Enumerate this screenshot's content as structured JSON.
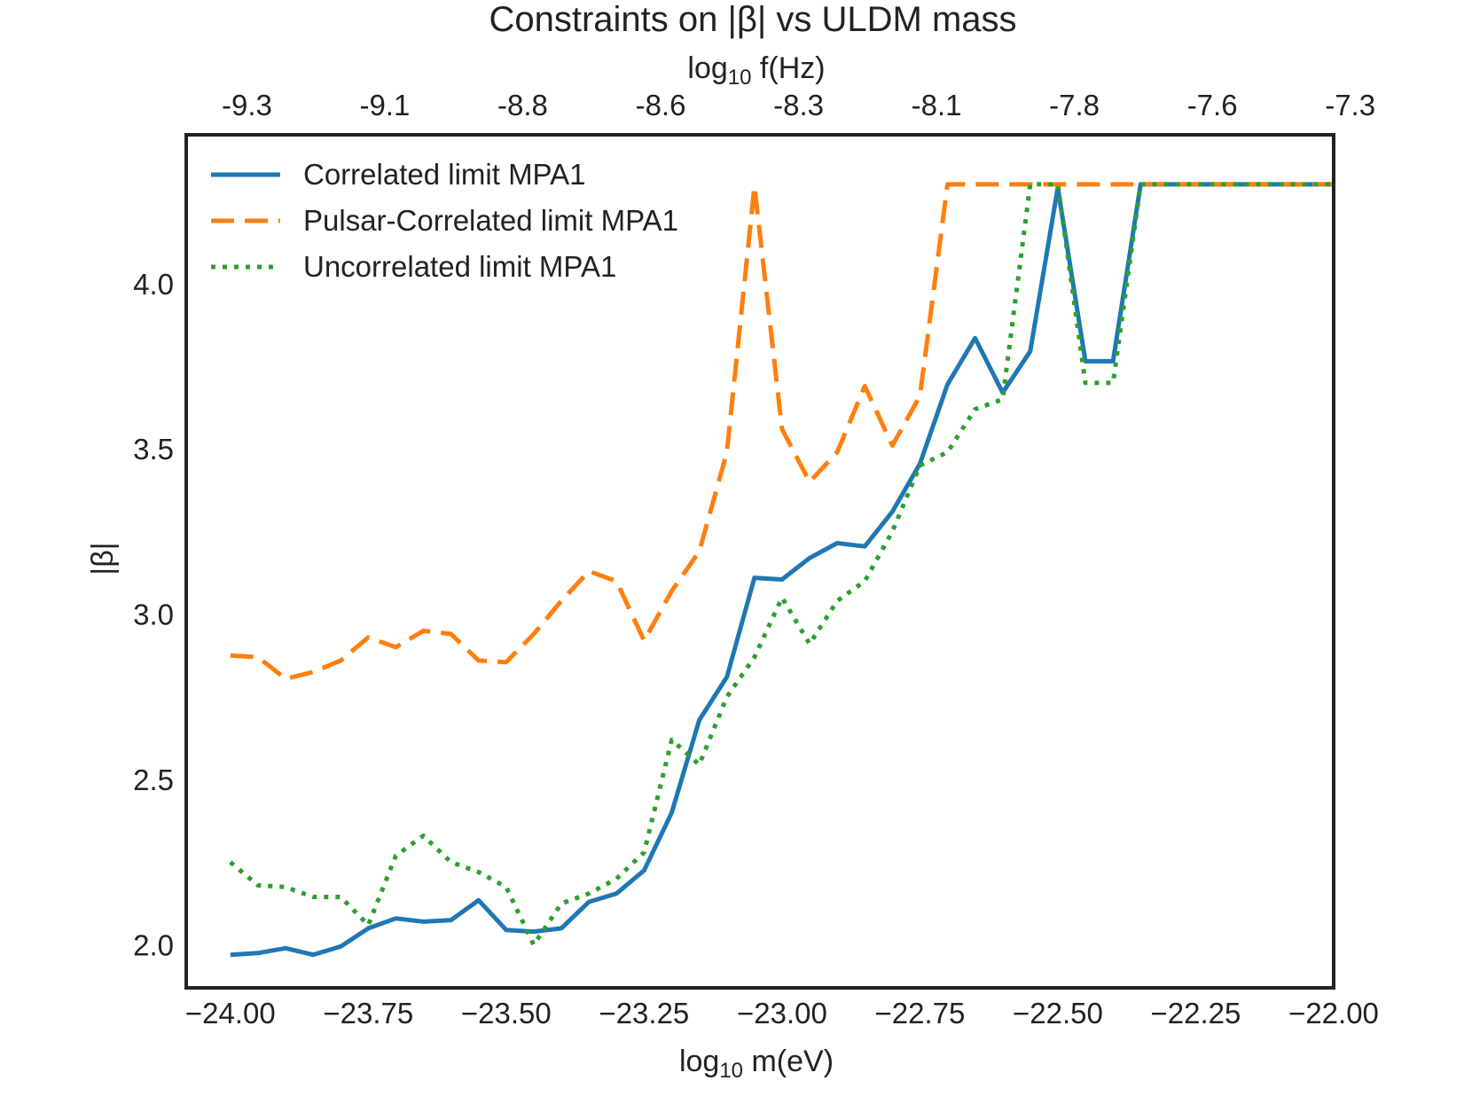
{
  "chart_data": {
    "type": "line",
    "title": "Constraints on |β| vs ULDM mass",
    "xlabel_prefix": "log",
    "xlabel_sub": "10",
    "xlabel_rest": " m(eV)",
    "top_xlabel_prefix": "log",
    "top_xlabel_sub": "10",
    "top_xlabel_rest": " f(Hz)",
    "ylabel": "|β|",
    "xlim": [
      -24.08,
      -22.0
    ],
    "ylim": [
      1.87,
      4.45
    ],
    "x_ticks": [
      -24.0,
      -23.75,
      -23.5,
      -23.25,
      -23.0,
      -22.75,
      -22.5,
      -22.25,
      -22.0
    ],
    "x_tick_labels": [
      "−24.00",
      "−23.75",
      "−23.50",
      "−23.25",
      "−23.00",
      "−22.75",
      "−22.50",
      "−22.25",
      "−22.00"
    ],
    "y_ticks": [
      2.0,
      2.5,
      3.0,
      3.5,
      4.0
    ],
    "y_tick_labels": [
      "2.0",
      "2.5",
      "3.0",
      "3.5",
      "4.0"
    ],
    "top_ticks_at_mass": [
      -23.97,
      -23.72,
      -23.47,
      -23.22,
      -22.97,
      -22.72,
      -22.47,
      -22.22,
      -21.97
    ],
    "top_tick_labels": [
      "-9.3",
      "-9.1",
      "-8.8",
      "-8.6",
      "-8.3",
      "-8.1",
      "-7.8",
      "-7.6",
      "-7.3"
    ],
    "grid": false,
    "legend_position": "upper-left",
    "x": [
      -24.0,
      -23.95,
      -23.9,
      -23.85,
      -23.8,
      -23.75,
      -23.7,
      -23.65,
      -23.6,
      -23.55,
      -23.5,
      -23.45,
      -23.4,
      -23.35,
      -23.3,
      -23.25,
      -23.2,
      -23.15,
      -23.1,
      -23.05,
      -23.0,
      -22.95,
      -22.9,
      -22.85,
      -22.8,
      -22.75,
      -22.7,
      -22.65,
      -22.6,
      -22.55,
      -22.5,
      -22.45,
      -22.4,
      -22.35,
      -22.3,
      -22.25,
      -22.2,
      -22.15,
      -22.1,
      -22.05,
      -22.0
    ],
    "series": [
      {
        "name": "Correlated limit MPA1",
        "color": "#1f77b4",
        "style": "solid",
        "values": [
          1.97,
          1.975,
          1.99,
          1.97,
          1.995,
          2.05,
          2.08,
          2.07,
          2.075,
          2.135,
          2.045,
          2.04,
          2.05,
          2.13,
          2.155,
          2.225,
          2.4,
          2.68,
          2.81,
          3.11,
          3.105,
          3.17,
          3.215,
          3.205,
          3.31,
          3.455,
          3.695,
          3.835,
          3.67,
          3.795,
          4.29,
          3.765,
          3.765,
          4.3,
          4.3,
          4.3,
          4.3,
          4.3,
          4.3,
          4.3,
          4.3
        ]
      },
      {
        "name": "Pulsar-Correlated limit MPA1",
        "color": "#ff7f0e",
        "style": "dashed",
        "values": [
          2.875,
          2.87,
          2.805,
          2.825,
          2.86,
          2.93,
          2.9,
          2.95,
          2.94,
          2.86,
          2.855,
          2.94,
          3.04,
          3.13,
          3.1,
          2.92,
          3.07,
          3.19,
          3.49,
          4.295,
          3.56,
          3.4,
          3.49,
          3.69,
          3.51,
          3.66,
          4.3,
          4.3,
          4.3,
          4.3,
          4.3,
          4.3,
          4.3,
          4.3,
          4.3,
          4.3,
          4.3,
          4.3,
          4.3,
          4.3,
          4.3
        ]
      },
      {
        "name": "Uncorrelated limit MPA1",
        "color": "#2ca02c",
        "style": "dotted",
        "values": [
          2.25,
          2.18,
          2.175,
          2.145,
          2.145,
          2.06,
          2.27,
          2.33,
          2.25,
          2.22,
          2.175,
          2.0,
          2.125,
          2.155,
          2.2,
          2.28,
          2.62,
          2.545,
          2.75,
          2.87,
          3.05,
          2.91,
          3.04,
          3.1,
          3.25,
          3.45,
          3.49,
          3.62,
          3.65,
          4.3,
          4.3,
          3.7,
          3.7,
          4.3,
          4.3,
          4.3,
          4.3,
          4.3,
          4.3,
          4.3,
          4.3
        ]
      }
    ]
  }
}
